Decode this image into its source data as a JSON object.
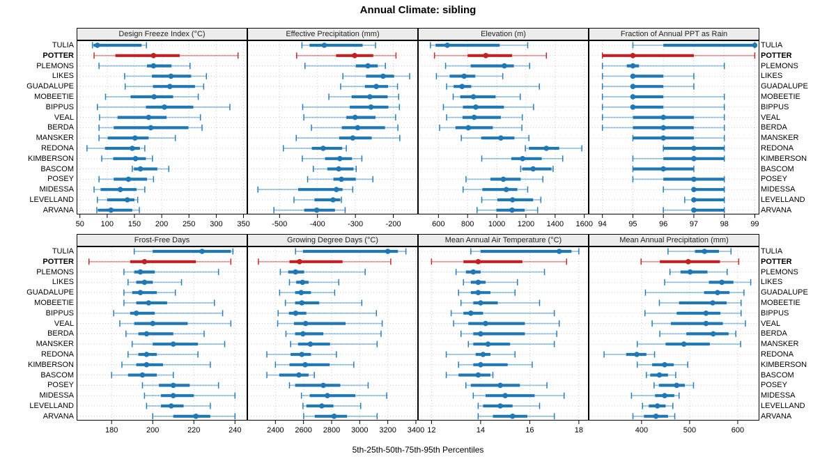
{
  "chart_data": {
    "type": "dot-whisker-trellis",
    "title": "Annual Climate: sibling",
    "xlabel": "5th-25th-50th-75th-95th Percentiles",
    "percentiles": [
      5,
      25,
      50,
      75,
      95
    ],
    "highlight_station": "POTTER",
    "legend_position": "none",
    "grid": "dotted",
    "colors": {
      "series": "#1f77b4",
      "highlight": "#bf2222",
      "strip_bg": "#ececec",
      "grid": "#c9c9c9",
      "border": "#000000"
    },
    "stations": [
      "TULIA",
      "POTTER",
      "PLEMONS",
      "LIKES",
      "GUADALUPE",
      "MOBEETIE",
      "BIPPUS",
      "VEAL",
      "BERDA",
      "MANSKER",
      "REDONA",
      "KIMBERSON",
      "BASCOM",
      "POSEY",
      "MIDESSA",
      "LEVELLAND",
      "ARVANA"
    ],
    "panels": [
      {
        "label": "Design Freeze Index (°C)",
        "row": 0,
        "col": 0,
        "ticks": [
          50,
          100,
          150,
          200,
          250,
          300,
          350
        ],
        "xlim": [
          44,
          357
        ],
        "values": [
          [
            73,
            75,
            82,
            163,
            172
          ],
          [
            76,
            115,
            185,
            233,
            340
          ],
          [
            85,
            173,
            185,
            218,
            252
          ],
          [
            132,
            182,
            217,
            254,
            282
          ],
          [
            133,
            184,
            215,
            261,
            277
          ],
          [
            97,
            143,
            186,
            221,
            267
          ],
          [
            82,
            171,
            205,
            258,
            325
          ],
          [
            86,
            119,
            176,
            209,
            271
          ],
          [
            85,
            112,
            180,
            249,
            274
          ],
          [
            85,
            101,
            151,
            176,
            225
          ],
          [
            63,
            96,
            146,
            160,
            169
          ],
          [
            90,
            111,
            152,
            171,
            183
          ],
          [
            146,
            149,
            161,
            192,
            213
          ],
          [
            85,
            112,
            139,
            173,
            185
          ],
          [
            76,
            88,
            124,
            154,
            169
          ],
          [
            82,
            100,
            137,
            150,
            156
          ],
          [
            81,
            83,
            107,
            146,
            159
          ]
        ]
      },
      {
        "label": "Effective Precipitation (mm)",
        "row": 0,
        "col": 1,
        "ticks": [
          -500,
          -400,
          -300,
          -200
        ],
        "xlim": [
          -585,
          -135
        ],
        "values": [
          [
            -441,
            -421,
            -382,
            -281,
            -247
          ],
          [
            -455,
            -351,
            -302,
            -253,
            -193
          ],
          [
            -433,
            -299,
            -267,
            -241,
            -221
          ],
          [
            -333,
            -272,
            -227,
            -198,
            -157
          ],
          [
            -339,
            -275,
            -245,
            -214,
            -189
          ],
          [
            -370,
            -310,
            -262,
            -215,
            -186
          ],
          [
            -439,
            -315,
            -259,
            -213,
            -184
          ],
          [
            -436,
            -324,
            -301,
            -247,
            -194
          ],
          [
            -416,
            -336,
            -294,
            -222,
            -188
          ],
          [
            -456,
            -343,
            -307,
            -257,
            -183
          ],
          [
            -490,
            -415,
            -385,
            -335,
            -324
          ],
          [
            -440,
            -380,
            -341,
            -309,
            -283
          ],
          [
            -411,
            -374,
            -344,
            -305,
            -298
          ],
          [
            -426,
            -358,
            -337,
            -299,
            -254
          ],
          [
            -557,
            -451,
            -350,
            -334,
            -307
          ],
          [
            -462,
            -408,
            -359,
            -340,
            -337
          ],
          [
            -515,
            -435,
            -402,
            -354,
            -327
          ]
        ]
      },
      {
        "label": "Elevation (m)",
        "row": 0,
        "col": 2,
        "ticks": [
          600,
          800,
          1000,
          1200,
          1400,
          1600
        ],
        "xlim": [
          460,
          1630
        ],
        "values": [
          [
            545,
            580,
            661,
            1020,
            1212
          ],
          [
            573,
            800,
            925,
            1105,
            1340
          ],
          [
            649,
            821,
            1052,
            1117,
            1225
          ],
          [
            586,
            677,
            776,
            853,
            1041
          ],
          [
            656,
            704,
            762,
            825,
            1292
          ],
          [
            701,
            749,
            840,
            992,
            1161
          ],
          [
            634,
            768,
            856,
            1049,
            1252
          ],
          [
            656,
            765,
            845,
            1028,
            1175
          ],
          [
            608,
            717,
            805,
            973,
            1172
          ],
          [
            757,
            893,
            1028,
            1121,
            1220
          ],
          [
            1196,
            1220,
            1340,
            1428,
            1583
          ],
          [
            897,
            1100,
            1177,
            1308,
            1452
          ],
          [
            1164,
            1175,
            1249,
            1375,
            1386
          ],
          [
            789,
            956,
            1045,
            1164,
            1316
          ],
          [
            769,
            901,
            1065,
            1141,
            1212
          ],
          [
            897,
            1004,
            1108,
            1249,
            1302
          ],
          [
            865,
            997,
            1105,
            1191,
            1280
          ]
        ]
      },
      {
        "label": "Fraction of Annual PPT as Rain",
        "row": 0,
        "col": 3,
        "ticks": [
          94,
          95,
          96,
          97,
          98,
          99
        ],
        "xlim": [
          93.55,
          99.15
        ],
        "values": [
          [
            95,
            96,
            99,
            99,
            99
          ],
          [
            94,
            94,
            95,
            97,
            99
          ],
          [
            94,
            94.8,
            95,
            95.2,
            98
          ],
          [
            94,
            95,
            95,
            96,
            97
          ],
          [
            94,
            95,
            95,
            96,
            97
          ],
          [
            94,
            95,
            95,
            96,
            98
          ],
          [
            94,
            95,
            95,
            96,
            98
          ],
          [
            94,
            95,
            96,
            97,
            98
          ],
          [
            94,
            95,
            96,
            97,
            98
          ],
          [
            95,
            95,
            96,
            97,
            98
          ],
          [
            96,
            96,
            97,
            98,
            98
          ],
          [
            95,
            96,
            97,
            98,
            98
          ],
          [
            95,
            95,
            96,
            97,
            97
          ],
          [
            95,
            96,
            97,
            98,
            98
          ],
          [
            96,
            97,
            97,
            98,
            98
          ],
          [
            96.7,
            97,
            97,
            98,
            98
          ],
          [
            96,
            97,
            97,
            98,
            98
          ]
        ]
      },
      {
        "label": "Frost-Free Days",
        "row": 1,
        "col": 0,
        "ticks": [
          180,
          200,
          220,
          240
        ],
        "xlim": [
          163,
          246
        ],
        "values": [
          [
            191,
            200,
            224,
            238,
            239
          ],
          [
            169,
            189,
            196,
            221,
            238
          ],
          [
            186,
            191,
            194,
            201,
            232
          ],
          [
            188,
            192,
            196,
            200,
            214
          ],
          [
            186,
            190,
            194,
            202,
            211
          ],
          [
            186,
            192,
            198,
            207,
            230
          ],
          [
            181,
            189,
            192,
            201,
            234
          ],
          [
            184,
            191,
            200,
            217,
            238
          ],
          [
            187,
            193,
            197,
            210,
            225
          ],
          [
            190,
            200,
            210,
            222,
            235
          ],
          [
            188,
            193,
            197,
            202,
            222
          ],
          [
            185,
            192,
            197,
            205,
            228
          ],
          [
            180,
            188,
            195,
            202,
            210
          ],
          [
            195,
            203,
            210,
            218,
            232
          ],
          [
            196,
            204,
            210,
            220,
            240
          ],
          [
            197,
            204,
            209,
            215,
            228
          ],
          [
            200,
            210,
            221,
            228,
            240
          ]
        ]
      },
      {
        "label": "Growing Degree Days (°C)",
        "row": 1,
        "col": 1,
        "ticks": [
          2400,
          2600,
          2800,
          3000,
          3200,
          3400
        ],
        "xlim": [
          2200,
          3415
        ],
        "values": [
          [
            2543,
            2596,
            3200,
            3272,
            3329
          ],
          [
            2279,
            2500,
            2572,
            2878,
            3221
          ],
          [
            2435,
            2491,
            2543,
            2604,
            3039
          ],
          [
            2500,
            2548,
            2593,
            2636,
            2851
          ],
          [
            2430,
            2540,
            2583,
            2653,
            2822
          ],
          [
            2471,
            2540,
            2588,
            2712,
            3015
          ],
          [
            2419,
            2496,
            2544,
            2620,
            3119
          ],
          [
            2416,
            2532,
            2615,
            2899,
            3160
          ],
          [
            2475,
            2540,
            2596,
            2741,
            3152
          ],
          [
            2508,
            2561,
            2649,
            2789,
            3124
          ],
          [
            2339,
            2508,
            2588,
            2653,
            2834
          ],
          [
            2400,
            2500,
            2612,
            2786,
            2958
          ],
          [
            2339,
            2427,
            2567,
            2636,
            2677
          ],
          [
            2500,
            2540,
            2741,
            2862,
            3060
          ],
          [
            2585,
            2644,
            2770,
            2969,
            3192
          ],
          [
            2596,
            2620,
            2730,
            2813,
            3007
          ],
          [
            2601,
            2680,
            2818,
            2910,
            3124
          ]
        ]
      },
      {
        "label": "Mean Annual Air Temperature (°C)",
        "row": 1,
        "col": 2,
        "ticks": [
          12,
          14,
          16,
          18
        ],
        "xlim": [
          11.45,
          18.4
        ],
        "values": [
          [
            13.6,
            14.0,
            17.2,
            17.7,
            18.0
          ],
          [
            12.0,
            13.3,
            13.9,
            15.7,
            17.5
          ],
          [
            13.0,
            13.4,
            13.7,
            14.0,
            16.6
          ],
          [
            13.3,
            13.6,
            13.9,
            14.2,
            15.5
          ],
          [
            13.1,
            13.6,
            13.9,
            14.4,
            15.4
          ],
          [
            13.2,
            13.7,
            14.0,
            14.7,
            16.4
          ],
          [
            12.8,
            13.3,
            13.6,
            14.1,
            17.0
          ],
          [
            12.9,
            13.5,
            14.2,
            15.8,
            17.2
          ],
          [
            13.2,
            13.7,
            14.0,
            15.8,
            17.1
          ],
          [
            13.5,
            13.7,
            14.3,
            15.2,
            17.0
          ],
          [
            12.6,
            13.8,
            14.1,
            14.4,
            15.4
          ],
          [
            13.1,
            13.7,
            14.0,
            15.1,
            16.1
          ],
          [
            12.6,
            13.1,
            13.9,
            14.4,
            14.5
          ],
          [
            13.4,
            13.6,
            14.8,
            15.6,
            16.7
          ],
          [
            13.7,
            14.2,
            15.0,
            16.2,
            17.4
          ],
          [
            13.9,
            14.1,
            14.8,
            15.3,
            16.4
          ],
          [
            13.9,
            14.5,
            15.3,
            15.9,
            17.0
          ]
        ]
      },
      {
        "label": "Mean Annual Precipitation (mm)",
        "row": 1,
        "col": 3,
        "ticks": [
          400,
          500,
          600
        ],
        "xlim": [
          290,
          645
        ],
        "values": [
          [
            455,
            511,
            531,
            561,
            586
          ],
          [
            399,
            438,
            497,
            563,
            602
          ],
          [
            459,
            481,
            501,
            537,
            578
          ],
          [
            448,
            540,
            567,
            591,
            627
          ],
          [
            408,
            530,
            558,
            583,
            613
          ],
          [
            437,
            478,
            548,
            577,
            607
          ],
          [
            407,
            473,
            534,
            564,
            607
          ],
          [
            422,
            461,
            534,
            569,
            616
          ],
          [
            438,
            493,
            549,
            581,
            596
          ],
          [
            391,
            450,
            488,
            542,
            606
          ],
          [
            322,
            368,
            390,
            410,
            427
          ],
          [
            391,
            422,
            448,
            467,
            496
          ],
          [
            410,
            418,
            437,
            455,
            471
          ],
          [
            426,
            436,
            473,
            490,
            508
          ],
          [
            379,
            428,
            448,
            468,
            478
          ],
          [
            402,
            415,
            433,
            450,
            465
          ],
          [
            382,
            405,
            430,
            455,
            469
          ]
        ]
      }
    ]
  }
}
